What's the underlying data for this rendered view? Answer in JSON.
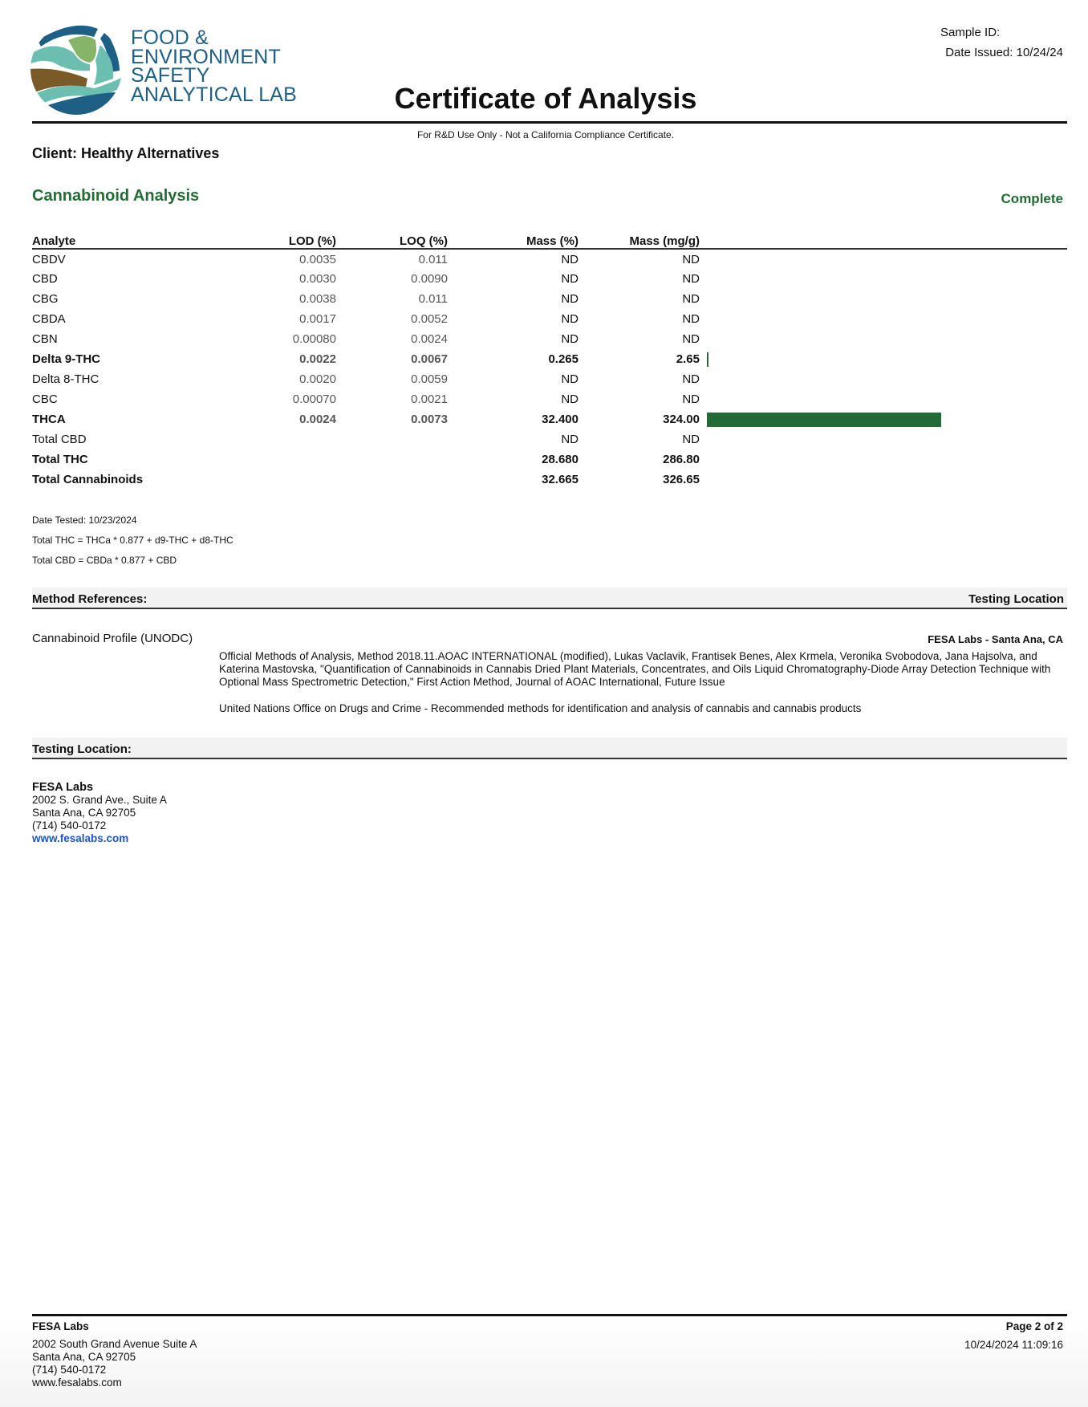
{
  "header": {
    "logo_text": [
      "FOOD &",
      "ENVIRONMENT",
      "SAFETY",
      "ANALYTICAL LAB"
    ],
    "logo_colors": {
      "dark_blue": "#1e5f86",
      "teal": "#6bbfb0",
      "green": "#86b56a",
      "brown": "#7a5a26"
    },
    "sample_id_label": "Sample ID:",
    "date_issued": "Date Issued: 10/24/24",
    "title": "Certificate of Analysis",
    "disclaimer": "For R&D Use Only - Not a California Compliance Certificate.",
    "client": "Client: Healthy Alternatives"
  },
  "analysis": {
    "title": "Cannabinoid Analysis",
    "status": "Complete",
    "accent_color": "#236b35",
    "columns": [
      "Analyte",
      "LOD (%)",
      "LOQ (%)",
      "Mass (%)",
      "Mass (mg/g)"
    ],
    "rows": [
      {
        "analyte": "CBDV",
        "lod": "0.0035",
        "loq": "0.011",
        "mass_pct": "ND",
        "mass_mg": "ND",
        "bold": false,
        "bar_value": 0
      },
      {
        "analyte": "CBD",
        "lod": "0.0030",
        "loq": "0.0090",
        "mass_pct": "ND",
        "mass_mg": "ND",
        "bold": false,
        "bar_value": 0
      },
      {
        "analyte": "CBG",
        "lod": "0.0038",
        "loq": "0.011",
        "mass_pct": "ND",
        "mass_mg": "ND",
        "bold": false,
        "bar_value": 0
      },
      {
        "analyte": "CBDA",
        "lod": "0.0017",
        "loq": "0.0052",
        "mass_pct": "ND",
        "mass_mg": "ND",
        "bold": false,
        "bar_value": 0
      },
      {
        "analyte": "CBN",
        "lod": "0.00080",
        "loq": "0.0024",
        "mass_pct": "ND",
        "mass_mg": "ND",
        "bold": false,
        "bar_value": 0
      },
      {
        "analyte": "Delta 9-THC",
        "lod": "0.0022",
        "loq": "0.0067",
        "mass_pct": "0.265",
        "mass_mg": "2.65",
        "bold": true,
        "bar_value": 2.65
      },
      {
        "analyte": "Delta 8-THC",
        "lod": "0.0020",
        "loq": "0.0059",
        "mass_pct": "ND",
        "mass_mg": "ND",
        "bold": false,
        "bar_value": 0
      },
      {
        "analyte": "CBC",
        "lod": "0.00070",
        "loq": "0.0021",
        "mass_pct": "ND",
        "mass_mg": "ND",
        "bold": false,
        "bar_value": 0
      },
      {
        "analyte": "THCA",
        "lod": "0.0024",
        "loq": "0.0073",
        "mass_pct": "32.400",
        "mass_mg": "324.00",
        "bold": true,
        "bar_value": 324
      },
      {
        "analyte": "Total CBD",
        "lod": "",
        "loq": "",
        "mass_pct": "ND",
        "mass_mg": "ND",
        "bold": false,
        "bar_value": 0
      },
      {
        "analyte": "Total THC",
        "lod": "",
        "loq": "",
        "mass_pct": "28.680",
        "mass_mg": "286.80",
        "bold": true,
        "bar_value": 0
      },
      {
        "analyte": "Total Cannabinoids",
        "lod": "",
        "loq": "",
        "mass_pct": "32.665",
        "mass_mg": "326.65",
        "bold": true,
        "bar_value": 0
      }
    ],
    "date_tested": "Date Tested: 10/23/2024",
    "formula_thc": "Total THC = THCa * 0.877 + d9-THC + d8-THC",
    "formula_cbd": "Total CBD = CBDa * 0.877 + CBD"
  },
  "methods": {
    "header_left": "Method References:",
    "header_right": "Testing Location",
    "name": "Cannabinoid Profile (UNODC)",
    "location": "FESA Labs - Santa Ana, CA",
    "reference_1": "Official Methods of Analysis, Method 2018.11.AOAC INTERNATIONAL (modified), Lukas Vaclavik, Frantisek Benes, Alex Krmela, Veronika Svobodova, Jana Hajsolva, and Katerina Mastovska, \"Quantification of Cannabinoids in Cannabis Dried Plant Materials, Concentrates, and Oils Liquid Chromatography-Diode Array Detection Technique with Optional Mass Spectrometric Detection,\" First Action Method, Journal of AOAC International, Future Issue",
    "reference_2": "United Nations Office on Drugs and Crime - Recommended methods for identification and analysis of cannabis and cannabis products"
  },
  "testing_location": {
    "header": "Testing Location:",
    "name": "FESA Labs",
    "address_1": "2002 S. Grand Ave., Suite A",
    "address_2": "Santa Ana, CA 92705",
    "phone": "(714) 540-0172",
    "website": "www.fesalabs.com"
  },
  "footer": {
    "name": "FESA Labs",
    "address_1": "2002 South Grand Avenue Suite A",
    "address_2": "Santa Ana, CA 92705",
    "phone": "(714) 540-0172",
    "website": "www.fesalabs.com",
    "page": "Page 2 of 2",
    "timestamp": "10/24/2024 11:09:16"
  }
}
